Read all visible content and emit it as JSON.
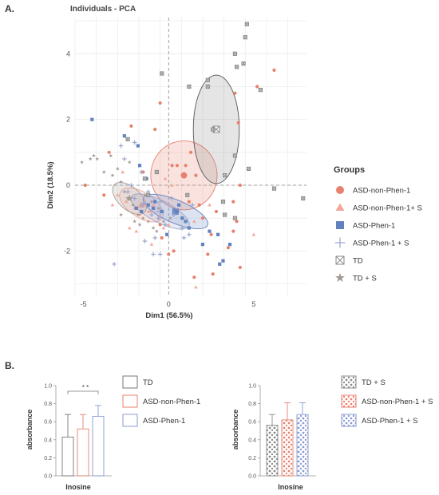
{
  "panel_a_label": "A.",
  "panel_b_label": "B.",
  "chart_data": [
    {
      "type": "scatter",
      "title": "Individuals - PCA",
      "xlabel": "Dim1 (56.5%)",
      "ylabel": "Dim2 (18.5%)",
      "xlim": [
        -5.5,
        8.1
      ],
      "ylim": [
        -3.4,
        5.1
      ],
      "xticks": [
        -5,
        0,
        5
      ],
      "yticks": [
        -2,
        0,
        2,
        4
      ],
      "grid": true,
      "legend_title": "Groups",
      "legend_position": "right",
      "series": [
        {
          "name": "ASD-non-Phen-1",
          "marker": "circle",
          "color": "#e8806e",
          "points": [
            [
              -4.9,
              0.0
            ],
            [
              -3.8,
              -0.3
            ],
            [
              -3.5,
              1.0
            ],
            [
              -2.2,
              1.8
            ],
            [
              -1.5,
              0.4
            ],
            [
              -0.8,
              1.7
            ],
            [
              -0.5,
              2.5
            ],
            [
              0.2,
              0.6
            ],
            [
              0.5,
              0.6
            ],
            [
              1.0,
              0.6
            ],
            [
              1.3,
              1.0
            ],
            [
              1.6,
              0.3
            ],
            [
              1.2,
              -0.5
            ],
            [
              1.8,
              -0.6
            ],
            [
              2.8,
              -0.8
            ],
            [
              3.5,
              -1.9
            ],
            [
              4.0,
              -1.1
            ],
            [
              3.8,
              -0.5
            ],
            [
              4.2,
              0.0
            ],
            [
              4.1,
              1.9
            ],
            [
              3.9,
              2.8
            ],
            [
              6.2,
              3.5
            ],
            [
              5.2,
              3.0
            ],
            [
              2.0,
              -1.0
            ],
            [
              2.5,
              -1.5
            ],
            [
              3.8,
              -1.4
            ],
            [
              2.3,
              -2.1
            ],
            [
              2.6,
              -2.7
            ],
            [
              -0.5,
              -1.2
            ],
            [
              0.0,
              -2.1
            ],
            [
              0.3,
              -2.0
            ],
            [
              1.5,
              -2.8
            ],
            [
              4.2,
              -2.5
            ],
            [
              -0.4,
              -1.6
            ]
          ]
        },
        {
          "name": "ASD-non-Phen-1+ S",
          "marker": "triangle",
          "color": "#f2a79b",
          "points": [
            [
              -3.3,
              -0.6
            ],
            [
              -3.0,
              -0.3
            ],
            [
              -2.7,
              0.4
            ],
            [
              -2.5,
              -0.5
            ],
            [
              -2.0,
              -0.7
            ],
            [
              -1.7,
              -0.9
            ],
            [
              -1.3,
              -0.6
            ],
            [
              -1.1,
              -0.8
            ],
            [
              -0.9,
              -0.6
            ],
            [
              -0.6,
              -1.0
            ],
            [
              -0.3,
              -1.3
            ],
            [
              0.0,
              -1.2
            ],
            [
              0.2,
              0.0
            ],
            [
              -0.2,
              0.2
            ],
            [
              -1.9,
              -1.4
            ],
            [
              -2.3,
              -1.3
            ],
            [
              2.4,
              -0.6
            ],
            [
              1.5,
              -1.1
            ],
            [
              5.0,
              -1.5
            ],
            [
              1.6,
              -3.1
            ],
            [
              -1.0,
              -1.8
            ],
            [
              -1.2,
              -0.8
            ]
          ]
        },
        {
          "name": "ASD-Phen-1",
          "marker": "square",
          "color": "#6282bf",
          "points": [
            [
              -4.5,
              2.0
            ],
            [
              -2.6,
              1.5
            ],
            [
              -1.8,
              1.2
            ],
            [
              -1.2,
              -0.6
            ],
            [
              -0.9,
              -0.7
            ],
            [
              0.5,
              -0.8
            ],
            [
              0.6,
              -0.6
            ],
            [
              0.8,
              -1.0
            ],
            [
              1.0,
              -1.1
            ],
            [
              2.4,
              -1.4
            ],
            [
              2.9,
              -1.5
            ],
            [
              3.6,
              -1.8
            ],
            [
              3.9,
              -1.0
            ],
            [
              3.0,
              -2.4
            ],
            [
              3.2,
              -2.3
            ],
            [
              -1.6,
              -0.8
            ],
            [
              1.2,
              -1.3
            ],
            [
              -1.9,
              -0.7
            ],
            [
              -0.4,
              -0.8
            ],
            [
              -1.7,
              0.6
            ],
            [
              -1.3,
              0.2
            ],
            [
              2.0,
              -1.8
            ],
            [
              -0.1,
              -1.5
            ],
            [
              -0.8,
              -0.5
            ]
          ]
        },
        {
          "name": "ASD-Phen-1 + S",
          "marker": "plus",
          "color": "#9aa6cf",
          "points": [
            [
              -3.2,
              -2.4
            ],
            [
              -2.8,
              1.2
            ],
            [
              -2.6,
              0.8
            ],
            [
              -2.4,
              -0.2
            ],
            [
              -2.0,
              -0.4
            ],
            [
              -1.5,
              -0.6
            ],
            [
              -1.0,
              -0.9
            ],
            [
              -0.6,
              -1.0
            ],
            [
              -0.2,
              -1.2
            ],
            [
              0.3,
              -0.9
            ],
            [
              0.8,
              -1.3
            ],
            [
              1.2,
              -1.5
            ],
            [
              0.9,
              -1.6
            ],
            [
              -0.5,
              -2.1
            ],
            [
              -0.9,
              -2.1
            ],
            [
              -1.4,
              -1.7
            ],
            [
              -0.8,
              -1.6
            ],
            [
              -1.6,
              0.4
            ],
            [
              -1.2,
              -0.2
            ],
            [
              -0.5,
              -0.5
            ],
            [
              -2.2,
              0.0
            ],
            [
              0.2,
              -0.4
            ],
            [
              1.4,
              -0.6
            ],
            [
              -2.0,
              1.3
            ]
          ]
        },
        {
          "name": "TD",
          "marker": "xsquare",
          "color": "#8a8a8a",
          "points": [
            [
              4.6,
              4.9
            ],
            [
              4.5,
              4.5
            ],
            [
              3.9,
              4.0
            ],
            [
              4.0,
              3.6
            ],
            [
              4.4,
              3.7
            ],
            [
              5.4,
              2.9
            ],
            [
              2.3,
              3.0
            ],
            [
              2.3,
              3.2
            ],
            [
              1.2,
              3.0
            ],
            [
              -0.4,
              3.4
            ],
            [
              -2.4,
              1.4
            ],
            [
              2.6,
              1.7
            ],
            [
              3.9,
              0.9
            ],
            [
              3.3,
              0.3
            ],
            [
              4.7,
              0.5
            ],
            [
              6.2,
              -0.1
            ],
            [
              3.2,
              -0.5
            ],
            [
              3.9,
              -1.0
            ],
            [
              -1.4,
              0.2
            ],
            [
              -1.2,
              -0.3
            ],
            [
              1.1,
              -0.3
            ],
            [
              3.3,
              -0.9
            ],
            [
              -0.7,
              0.4
            ],
            [
              7.9,
              -0.4
            ]
          ]
        },
        {
          "name": "TD + S",
          "marker": "star",
          "color": "#a29a96",
          "points": [
            [
              -5.1,
              0.7
            ],
            [
              -4.6,
              0.8
            ],
            [
              -4.4,
              0.9
            ],
            [
              -4.2,
              0.8
            ],
            [
              -3.8,
              0.4
            ],
            [
              -3.4,
              0.9
            ],
            [
              -3.0,
              0.5
            ],
            [
              -2.8,
              0.1
            ],
            [
              -2.6,
              -0.2
            ],
            [
              -2.4,
              -0.4
            ],
            [
              -2.1,
              -0.6
            ],
            [
              -1.8,
              -0.9
            ],
            [
              -1.5,
              -1.0
            ],
            [
              -1.2,
              -1.1
            ],
            [
              -0.9,
              -1.3
            ],
            [
              -0.7,
              -1.4
            ],
            [
              -0.3,
              -1.1
            ],
            [
              0.1,
              -1.0
            ],
            [
              -2.8,
              -0.9
            ],
            [
              -2.0,
              -1.1
            ],
            [
              -1.7,
              -1.2
            ],
            [
              -1.0,
              -0.5
            ],
            [
              -3.3,
              0.3
            ],
            [
              -2.3,
              0.7
            ],
            [
              -0.6,
              -0.7
            ],
            [
              -1.4,
              -0.3
            ]
          ]
        }
      ],
      "ellipses": [
        {
          "group": "ASD-non-Phen-1",
          "center": [
            0.9,
            0.3
          ],
          "color": "#e8806e"
        },
        {
          "group": "ASD-non-Phen-1+ S",
          "center": [
            -1.6,
            -0.6
          ],
          "color": "#f2a79b"
        },
        {
          "group": "ASD-Phen-1",
          "center": [
            0.4,
            -0.8
          ],
          "color": "#6282bf"
        },
        {
          "group": "ASD-Phen-1 + S",
          "center": [
            -0.5,
            -0.8
          ],
          "color": "#9aa6cf"
        },
        {
          "group": "TD",
          "center": [
            2.8,
            1.7
          ],
          "color": "#8a8a8a"
        },
        {
          "group": "TD + S",
          "center": [
            -2.3,
            -0.4
          ],
          "color": "#a29a96"
        }
      ]
    },
    {
      "type": "bar",
      "categories": [
        "TD",
        "ASD-non-Phen-1",
        "ASD-Phen-1"
      ],
      "values": [
        0.43,
        0.52,
        0.66
      ],
      "errors": [
        0.25,
        0.16,
        0.12
      ],
      "colors": [
        "#777777",
        "#e8806e",
        "#8a9ad0"
      ],
      "fill": "none",
      "xlabel": "Inosine",
      "ylabel": "absorbance",
      "ylim": [
        0.0,
        1.0
      ],
      "yticks": [
        "0.0",
        "0.2",
        "0.4",
        "0.6",
        "0.8",
        "1.0"
      ],
      "significance": "* *",
      "legend_position": "right"
    },
    {
      "type": "bar",
      "categories": [
        "TD + S",
        "ASD-non-Phen-1 + S",
        "ASD-Phen-1 + S"
      ],
      "values": [
        0.56,
        0.62,
        0.68
      ],
      "errors": [
        0.12,
        0.19,
        0.13
      ],
      "colors": [
        "#8a8a8a",
        "#e8806e",
        "#8a9ad0"
      ],
      "fill": "dotted",
      "xlabel": "Inosine",
      "ylabel": "absorbance",
      "ylim": [
        0.0,
        1.0
      ],
      "yticks": [
        "0.0",
        "0.2",
        "0.4",
        "0.6",
        "0.8",
        "1.0"
      ],
      "legend_position": "right"
    }
  ]
}
